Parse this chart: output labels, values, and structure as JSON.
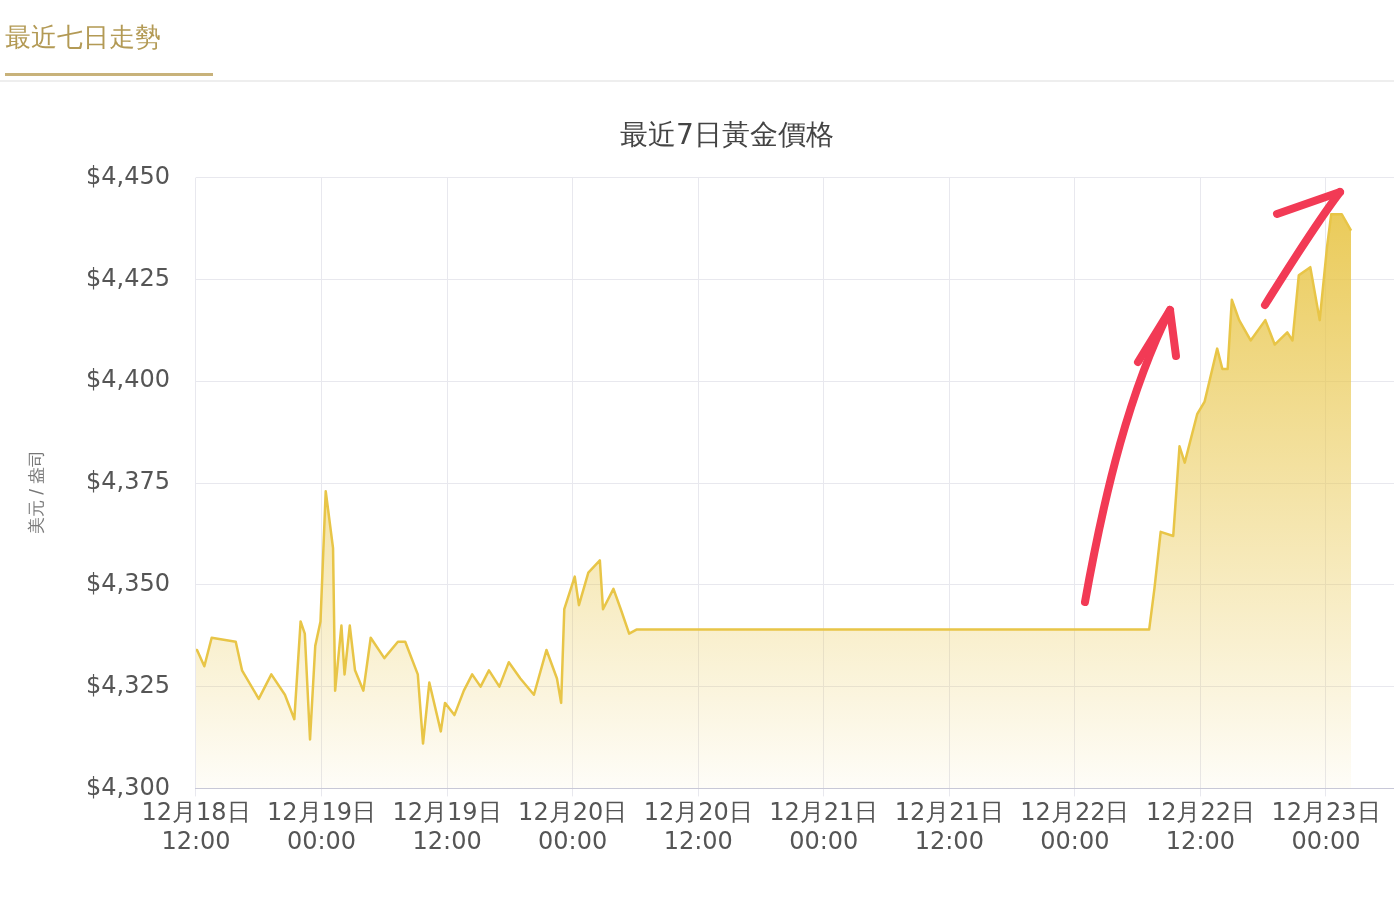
{
  "chart_data": {
    "type": "area",
    "title": "最近7日黃金價格",
    "ylabel": "美元 / 盎司",
    "annotations": [
      "最近七日走勢"
    ],
    "x": [
      "--12-18T12:00",
      "--12-18T12:06",
      "--12-18T12:48",
      "--12-18T13:30",
      "--12-18T15:48",
      "--12-18T16:24",
      "--12-18T18:00",
      "--12-18T19:12",
      "--12-18T20:30",
      "--12-18T21:24",
      "--12-18T22:00",
      "--12-18T22:24",
      "--12-18T22:54",
      "--12-18T23:24",
      "--12-18T23:54",
      "--12-19T00:24",
      "--12-19T01:06",
      "--12-19T01:18",
      "--12-19T01:54",
      "--12-19T02:12",
      "--12-19T02:42",
      "--12-19T03:12",
      "--12-19T04:00",
      "--12-19T04:42",
      "--12-19T06:00",
      "--12-19T07:18",
      "--12-19T08:00",
      "--12-19T09:12",
      "--12-19T09:42",
      "--12-19T10:18",
      "--12-19T11:24",
      "--12-19T11:48",
      "--12-19T12:42",
      "--12-19T13:36",
      "--12-19T14:24",
      "--12-19T15:12",
      "--12-19T16:00",
      "--12-19T17:00",
      "--12-19T17:54",
      "--12-19T19:00",
      "--12-19T20:18",
      "--12-19T21:30",
      "--12-19T22:30",
      "--12-19T22:54",
      "--12-19T23:12",
      "--12-20T00:12",
      "--12-20T00:36",
      "--12-20T01:30",
      "--12-20T02:36",
      "--12-20T02:54",
      "--12-20T03:54",
      "--12-20T04:36",
      "--12-20T05:24",
      "--12-20T06:06",
      "--12-22T07:06",
      "--12-22T07:36",
      "--12-22T08:12",
      "--12-22T09:24",
      "--12-22T10:00",
      "--12-22T10:30",
      "--12-22T11:42",
      "--12-22T12:24",
      "--12-22T13:36",
      "--12-22T14:06",
      "--12-22T14:36",
      "--12-22T15:00",
      "--12-22T15:42",
      "--12-22T16:48",
      "--12-22T18:12",
      "--12-22T19:06",
      "--12-22T20:18",
      "--12-22T20:48",
      "--12-22T21:24",
      "--12-22T22:30",
      "--12-22T23:24",
      "--12-23T00:06",
      "--12-23T00:30",
      "--12-23T01:30",
      "--12-23T02:24"
    ],
    "series": [
      {
        "color": "#e8c547",
        "values": [
          4334,
          4334,
          4330,
          4337,
          4336,
          4329,
          4322,
          4328,
          4323,
          4317,
          4341,
          4338,
          4312,
          4335,
          4341,
          4373,
          4359,
          4324,
          4340,
          4328,
          4340,
          4329,
          4324,
          4337,
          4332,
          4336,
          4336,
          4328,
          4311,
          4326,
          4314,
          4321,
          4318,
          4324,
          4328,
          4325,
          4329,
          4325,
          4331,
          4327,
          4323,
          4334,
          4327,
          4321,
          4344,
          4352,
          4345,
          4353,
          4356,
          4344,
          4349,
          4344,
          4338,
          4339,
          4339,
          4349,
          4363,
          4362,
          4384,
          4380,
          4392,
          4395,
          4408,
          4403,
          4403,
          4420,
          4415,
          4410,
          4415,
          4409,
          4412,
          4410,
          4426,
          4428,
          4415,
          4433,
          4441,
          4441,
          4437
        ]
      }
    ],
    "xlim": [
      "--12-18T12:00",
      "--12-23T06:30"
    ],
    "xticks": [
      {
        "value": "--12-18T12:00",
        "label": "12月18日 12:00"
      },
      {
        "value": "--12-19T00:00",
        "label": "12月19日 00:00"
      },
      {
        "value": "--12-19T12:00",
        "label": "12月19日 12:00"
      },
      {
        "value": "--12-20T00:00",
        "label": "12月20日 00:00"
      },
      {
        "value": "--12-20T12:00",
        "label": "12月20日 12:00"
      },
      {
        "value": "--12-21T00:00",
        "label": "12月21日 00:00"
      },
      {
        "value": "--12-21T12:00",
        "label": "12月21日 12:00"
      },
      {
        "value": "--12-22T00:00",
        "label": "12月22日 00:00"
      },
      {
        "value": "--12-22T12:00",
        "label": "12月22日 12:00"
      },
      {
        "value": "--12-23T00:00",
        "label": "12月23日 00:00"
      }
    ],
    "ylim": [
      4300,
      4450
    ],
    "yticks": [
      {
        "value": 4300,
        "label": "$4,300"
      },
      {
        "value": 4325,
        "label": "$4,325"
      },
      {
        "value": 4350,
        "label": "$4,350"
      },
      {
        "value": 4375,
        "label": "$4,375"
      },
      {
        "value": 4400,
        "label": "$4,400"
      },
      {
        "value": 4425,
        "label": "$4,425"
      },
      {
        "value": 4450,
        "label": "$4,450"
      }
    ],
    "grid": true,
    "legend": false,
    "marker": "none"
  }
}
